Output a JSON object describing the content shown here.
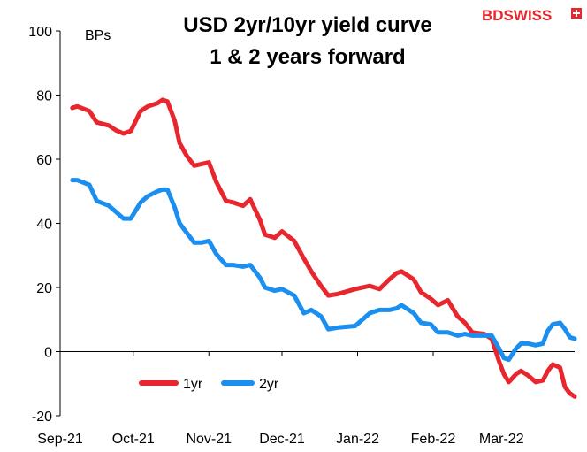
{
  "logo": {
    "text": "BDSWISS",
    "brand_color": "#e8262d"
  },
  "chart_data": {
    "type": "line",
    "title_lines": [
      "USD 2yr/10yr yield curve",
      "1 & 2 years forward"
    ],
    "unit_label": "BPs",
    "ylim": [
      -20,
      100
    ],
    "y_ticks": [
      -20,
      0,
      20,
      40,
      60,
      80,
      100
    ],
    "x_tick_labels": [
      "Sep-21",
      "Oct-21",
      "Nov-21",
      "Dec-21",
      "Jan-22",
      "Feb-22",
      "Mar-22"
    ],
    "x_ticks": [
      "2021-09-01",
      "2021-10-01",
      "2021-11-01",
      "2021-12-01",
      "2022-01-01",
      "2022-02-01",
      "2022-03-01"
    ],
    "x_range": [
      "2021-09-01",
      "2022-03-31"
    ],
    "grid": false,
    "legend_position": "bottom-left",
    "series": [
      {
        "name": "1yr",
        "color": "#e8262d",
        "points": [
          [
            "2021-09-06",
            76
          ],
          [
            "2021-09-08",
            76.5
          ],
          [
            "2021-09-13",
            75
          ],
          [
            "2021-09-16",
            71.5
          ],
          [
            "2021-09-21",
            70.5
          ],
          [
            "2021-09-24",
            69
          ],
          [
            "2021-09-27",
            68
          ],
          [
            "2021-09-30",
            68.8
          ],
          [
            "2021-10-04",
            75
          ],
          [
            "2021-10-07",
            76.5
          ],
          [
            "2021-10-11",
            77.5
          ],
          [
            "2021-10-13",
            78.5
          ],
          [
            "2021-10-15",
            78
          ],
          [
            "2021-10-18",
            72
          ],
          [
            "2021-10-20",
            65
          ],
          [
            "2021-10-23",
            61
          ],
          [
            "2021-10-26",
            58
          ],
          [
            "2021-10-29",
            58.5
          ],
          [
            "2021-11-01",
            59
          ],
          [
            "2021-11-04",
            53
          ],
          [
            "2021-11-08",
            47
          ],
          [
            "2021-11-11",
            46.5
          ],
          [
            "2021-11-15",
            45.5
          ],
          [
            "2021-11-18",
            47.5
          ],
          [
            "2021-11-22",
            41
          ],
          [
            "2021-11-24",
            36.5
          ],
          [
            "2021-11-28",
            35.5
          ],
          [
            "2021-12-01",
            37.5
          ],
          [
            "2021-12-06",
            34.5
          ],
          [
            "2021-12-10",
            29
          ],
          [
            "2021-12-13",
            25
          ],
          [
            "2021-12-17",
            20.5
          ],
          [
            "2021-12-20",
            17.5
          ],
          [
            "2021-12-24",
            18
          ],
          [
            "2021-12-31",
            19.5
          ],
          [
            "2022-01-06",
            20.5
          ],
          [
            "2022-01-10",
            19.5
          ],
          [
            "2022-01-14",
            22.5
          ],
          [
            "2022-01-17",
            24.5
          ],
          [
            "2022-01-19",
            25
          ],
          [
            "2022-01-24",
            22.5
          ],
          [
            "2022-01-27",
            18.5
          ],
          [
            "2022-01-31",
            16.5
          ],
          [
            "2022-02-03",
            14.5
          ],
          [
            "2022-02-07",
            16
          ],
          [
            "2022-02-11",
            11
          ],
          [
            "2022-02-14",
            9
          ],
          [
            "2022-02-17",
            6
          ],
          [
            "2022-02-22",
            5.5
          ],
          [
            "2022-02-25",
            4
          ],
          [
            "2022-02-28",
            -3
          ],
          [
            "2022-03-02",
            -7
          ],
          [
            "2022-03-04",
            -9.5
          ],
          [
            "2022-03-07",
            -7
          ],
          [
            "2022-03-09",
            -6
          ],
          [
            "2022-03-12",
            -7.5
          ],
          [
            "2022-03-15",
            -9.5
          ],
          [
            "2022-03-18",
            -9
          ],
          [
            "2022-03-20",
            -6
          ],
          [
            "2022-03-22",
            -4
          ],
          [
            "2022-03-25",
            -5
          ],
          [
            "2022-03-27",
            -11
          ],
          [
            "2022-03-29",
            -13
          ],
          [
            "2022-03-31",
            -14
          ]
        ]
      },
      {
        "name": "2yr",
        "color": "#1a8ff0",
        "points": [
          [
            "2021-09-06",
            53.5
          ],
          [
            "2021-09-08",
            53.5
          ],
          [
            "2021-09-13",
            52
          ],
          [
            "2021-09-16",
            47
          ],
          [
            "2021-09-21",
            45.5
          ],
          [
            "2021-09-24",
            43.5
          ],
          [
            "2021-09-27",
            41.5
          ],
          [
            "2021-09-30",
            41.5
          ],
          [
            "2021-10-04",
            46.5
          ],
          [
            "2021-10-07",
            48.5
          ],
          [
            "2021-10-11",
            50
          ],
          [
            "2021-10-13",
            50.5
          ],
          [
            "2021-10-15",
            50.5
          ],
          [
            "2021-10-18",
            45
          ],
          [
            "2021-10-20",
            40
          ],
          [
            "2021-10-23",
            37
          ],
          [
            "2021-10-26",
            34
          ],
          [
            "2021-10-29",
            34
          ],
          [
            "2021-11-01",
            34.5
          ],
          [
            "2021-11-04",
            30.5
          ],
          [
            "2021-11-08",
            27
          ],
          [
            "2021-11-11",
            27
          ],
          [
            "2021-11-15",
            26.5
          ],
          [
            "2021-11-18",
            27
          ],
          [
            "2021-11-22",
            23
          ],
          [
            "2021-11-24",
            20
          ],
          [
            "2021-11-28",
            19
          ],
          [
            "2021-12-01",
            19.5
          ],
          [
            "2021-12-06",
            17.5
          ],
          [
            "2021-12-10",
            12
          ],
          [
            "2021-12-13",
            13
          ],
          [
            "2021-12-17",
            11
          ],
          [
            "2021-12-20",
            7
          ],
          [
            "2021-12-24",
            7.5
          ],
          [
            "2021-12-31",
            8
          ],
          [
            "2022-01-06",
            12
          ],
          [
            "2022-01-10",
            13
          ],
          [
            "2022-01-14",
            13
          ],
          [
            "2022-01-17",
            13.5
          ],
          [
            "2022-01-19",
            14.5
          ],
          [
            "2022-01-24",
            12
          ],
          [
            "2022-01-27",
            9
          ],
          [
            "2022-01-31",
            8.5
          ],
          [
            "2022-02-03",
            6
          ],
          [
            "2022-02-07",
            6
          ],
          [
            "2022-02-11",
            5
          ],
          [
            "2022-02-14",
            5.5
          ],
          [
            "2022-02-17",
            5
          ],
          [
            "2022-02-22",
            5
          ],
          [
            "2022-02-25",
            5
          ],
          [
            "2022-02-28",
            1
          ],
          [
            "2022-03-02",
            -2
          ],
          [
            "2022-03-04",
            -2.5
          ],
          [
            "2022-03-07",
            1
          ],
          [
            "2022-03-09",
            2.5
          ],
          [
            "2022-03-12",
            2.5
          ],
          [
            "2022-03-15",
            2
          ],
          [
            "2022-03-18",
            2.5
          ],
          [
            "2022-03-20",
            6.5
          ],
          [
            "2022-03-22",
            8.5
          ],
          [
            "2022-03-25",
            9
          ],
          [
            "2022-03-27",
            7
          ],
          [
            "2022-03-29",
            4.5
          ],
          [
            "2022-03-31",
            4
          ]
        ]
      }
    ]
  }
}
